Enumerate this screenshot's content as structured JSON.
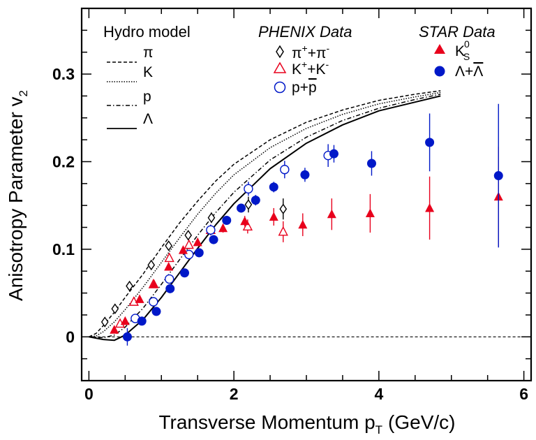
{
  "chart_data": {
    "type": "scatter",
    "xlabel": "Transverse Momentum p",
    "xlabel_sub": "T",
    "xlabel_unit": "(GeV/c)",
    "ylabel": "Anisotropy Parameter v",
    "ylabel_sub": "2",
    "xlim": [
      -0.1,
      6.1
    ],
    "ylim": [
      -0.05,
      0.375
    ],
    "x_ticks": [
      {
        "value": 0,
        "label": "0"
      },
      {
        "value": 2,
        "label": "2"
      },
      {
        "value": 4,
        "label": "4"
      },
      {
        "value": 6,
        "label": "6"
      }
    ],
    "y_ticks": [
      {
        "value": 0,
        "label": "0"
      },
      {
        "value": 0.1,
        "label": "0.1"
      },
      {
        "value": 0.2,
        "label": "0.2"
      },
      {
        "value": 0.3,
        "label": "0.3"
      }
    ],
    "reference_line": {
      "y": 0,
      "style": "dashed"
    },
    "legend": {
      "hydro_title": "Hydro model",
      "hydro_items": [
        {
          "label": "π",
          "style": "dashed"
        },
        {
          "label": "K",
          "style": "dotted"
        },
        {
          "label": "p",
          "style": "dashdot"
        },
        {
          "label": "Λ",
          "style": "solid"
        }
      ],
      "phenix_title": "PHENIX Data",
      "phenix_items": [
        {
          "base": "π",
          "sup1": "+",
          "mid": "+π",
          "sup2": "-"
        },
        {
          "base": "K",
          "sup1": "+",
          "mid": "+K",
          "sup2": "-"
        },
        {
          "base": "p+",
          "overbar": "p"
        }
      ],
      "star_title": "STAR Data",
      "star_items": [
        {
          "base": "K",
          "sub": "S",
          "sup": "0"
        },
        {
          "base": "Λ+",
          "overbar": "Λ"
        }
      ]
    },
    "curves": [
      {
        "name": "π",
        "style": "dashed",
        "points": [
          [
            0,
            0
          ],
          [
            0.1,
            0.004
          ],
          [
            0.2,
            0.013
          ],
          [
            0.35,
            0.028
          ],
          [
            0.5,
            0.045
          ],
          [
            0.75,
            0.072
          ],
          [
            1.0,
            0.102
          ],
          [
            1.25,
            0.13
          ],
          [
            1.5,
            0.155
          ],
          [
            1.75,
            0.178
          ],
          [
            2.0,
            0.197
          ],
          [
            2.5,
            0.225
          ],
          [
            3.0,
            0.245
          ],
          [
            3.5,
            0.259
          ],
          [
            4.0,
            0.27
          ],
          [
            4.5,
            0.277
          ],
          [
            4.85,
            0.281
          ]
        ]
      },
      {
        "name": "K",
        "style": "dotted",
        "points": [
          [
            0,
            0
          ],
          [
            0.1,
            0.001
          ],
          [
            0.2,
            0.006
          ],
          [
            0.35,
            0.017
          ],
          [
            0.5,
            0.031
          ],
          [
            0.75,
            0.057
          ],
          [
            1.0,
            0.085
          ],
          [
            1.25,
            0.113
          ],
          [
            1.5,
            0.14
          ],
          [
            1.75,
            0.164
          ],
          [
            2.0,
            0.185
          ],
          [
            2.5,
            0.216
          ],
          [
            3.0,
            0.238
          ],
          [
            3.5,
            0.254
          ],
          [
            4.0,
            0.266
          ],
          [
            4.5,
            0.274
          ],
          [
            4.85,
            0.279
          ]
        ]
      },
      {
        "name": "p",
        "style": "dashdot",
        "points": [
          [
            0,
            0
          ],
          [
            0.2,
            -0.001
          ],
          [
            0.35,
            0.002
          ],
          [
            0.5,
            0.011
          ],
          [
            0.75,
            0.033
          ],
          [
            1.0,
            0.06
          ],
          [
            1.25,
            0.088
          ],
          [
            1.5,
            0.116
          ],
          [
            1.75,
            0.142
          ],
          [
            2.0,
            0.165
          ],
          [
            2.5,
            0.202
          ],
          [
            3.0,
            0.228
          ],
          [
            3.5,
            0.247
          ],
          [
            4.0,
            0.261
          ],
          [
            4.5,
            0.271
          ],
          [
            4.85,
            0.277
          ]
        ]
      },
      {
        "name": "Λ",
        "style": "solid",
        "points": [
          [
            0,
            0
          ],
          [
            0.2,
            -0.003
          ],
          [
            0.35,
            -0.004
          ],
          [
            0.5,
            0.002
          ],
          [
            0.75,
            0.02
          ],
          [
            1.0,
            0.045
          ],
          [
            1.25,
            0.073
          ],
          [
            1.5,
            0.101
          ],
          [
            1.75,
            0.128
          ],
          [
            2.0,
            0.152
          ],
          [
            2.5,
            0.192
          ],
          [
            3.0,
            0.221
          ],
          [
            3.5,
            0.242
          ],
          [
            4.0,
            0.258
          ],
          [
            4.5,
            0.268
          ],
          [
            4.85,
            0.275
          ]
        ]
      }
    ],
    "series": [
      {
        "name": "π⁺+π⁻",
        "experiment": "PHENIX",
        "marker": "diamond-open",
        "color": "#000000",
        "points": [
          [
            0.22,
            0.017,
            0.001
          ],
          [
            0.36,
            0.032,
            0.001
          ],
          [
            0.56,
            0.058,
            0.002
          ],
          [
            0.86,
            0.082,
            0.002
          ],
          [
            1.1,
            0.104,
            0.003
          ],
          [
            1.37,
            0.116,
            0.004
          ],
          [
            1.69,
            0.136,
            0.006
          ],
          [
            2.2,
            0.151,
            0.009
          ],
          [
            2.68,
            0.146,
            0.012
          ]
        ]
      },
      {
        "name": "K⁺+K⁻",
        "experiment": "PHENIX",
        "marker": "triangle-open",
        "color": "#e8001c",
        "points": [
          [
            0.43,
            0.015,
            0.002
          ],
          [
            0.62,
            0.04,
            0.002
          ],
          [
            0.89,
            0.06,
            0.003
          ],
          [
            1.11,
            0.09,
            0.004
          ],
          [
            1.38,
            0.105,
            0.005
          ],
          [
            1.68,
            0.122,
            0.006
          ],
          [
            2.19,
            0.126,
            0.008
          ],
          [
            2.68,
            0.12,
            0.012
          ]
        ]
      },
      {
        "name": "p+p̄",
        "experiment": "PHENIX",
        "marker": "circle-open",
        "color": "#0018c8",
        "points": [
          [
            0.64,
            0.021,
            0.002
          ],
          [
            0.89,
            0.04,
            0.003
          ],
          [
            1.11,
            0.066,
            0.004
          ],
          [
            1.38,
            0.094,
            0.005
          ],
          [
            1.68,
            0.122,
            0.006
          ],
          [
            2.2,
            0.169,
            0.008
          ],
          [
            2.7,
            0.191,
            0.01
          ],
          [
            3.3,
            0.207,
            0.013
          ]
        ]
      },
      {
        "name": "K⁰S",
        "experiment": "STAR",
        "marker": "triangle-filled",
        "color": "#e8001c",
        "points": [
          [
            0.35,
            0.008,
            0.002
          ],
          [
            0.5,
            0.018,
            0.002
          ],
          [
            0.7,
            0.043,
            0.003
          ],
          [
            0.9,
            0.06,
            0.003
          ],
          [
            1.1,
            0.08,
            0.003
          ],
          [
            1.3,
            0.099,
            0.003
          ],
          [
            1.5,
            0.108,
            0.004
          ],
          [
            1.85,
            0.124,
            0.005
          ],
          [
            2.15,
            0.132,
            0.006
          ],
          [
            2.55,
            0.137,
            0.01
          ],
          [
            2.95,
            0.128,
            0.013
          ],
          [
            3.35,
            0.14,
            0.018
          ],
          [
            3.88,
            0.141,
            0.022
          ],
          [
            4.7,
            0.147,
            0.036
          ],
          [
            5.65,
            0.16,
            0.057
          ]
        ]
      },
      {
        "name": "Λ+Λ̄",
        "experiment": "STAR",
        "marker": "circle-filled",
        "color": "#0018c8",
        "points": [
          [
            0.53,
            0.0,
            0.01
          ],
          [
            0.73,
            0.018,
            0.004
          ],
          [
            0.93,
            0.029,
            0.004
          ],
          [
            1.12,
            0.055,
            0.004
          ],
          [
            1.32,
            0.073,
            0.004
          ],
          [
            1.52,
            0.096,
            0.005
          ],
          [
            1.72,
            0.111,
            0.005
          ],
          [
            1.9,
            0.133,
            0.005
          ],
          [
            2.1,
            0.147,
            0.005
          ],
          [
            2.3,
            0.156,
            0.006
          ],
          [
            2.55,
            0.171,
            0.006
          ],
          [
            2.98,
            0.185,
            0.008
          ],
          [
            3.38,
            0.209,
            0.01
          ],
          [
            3.9,
            0.198,
            0.014
          ],
          [
            4.7,
            0.222,
            0.033
          ],
          [
            5.65,
            0.184,
            0.082
          ]
        ]
      }
    ]
  }
}
